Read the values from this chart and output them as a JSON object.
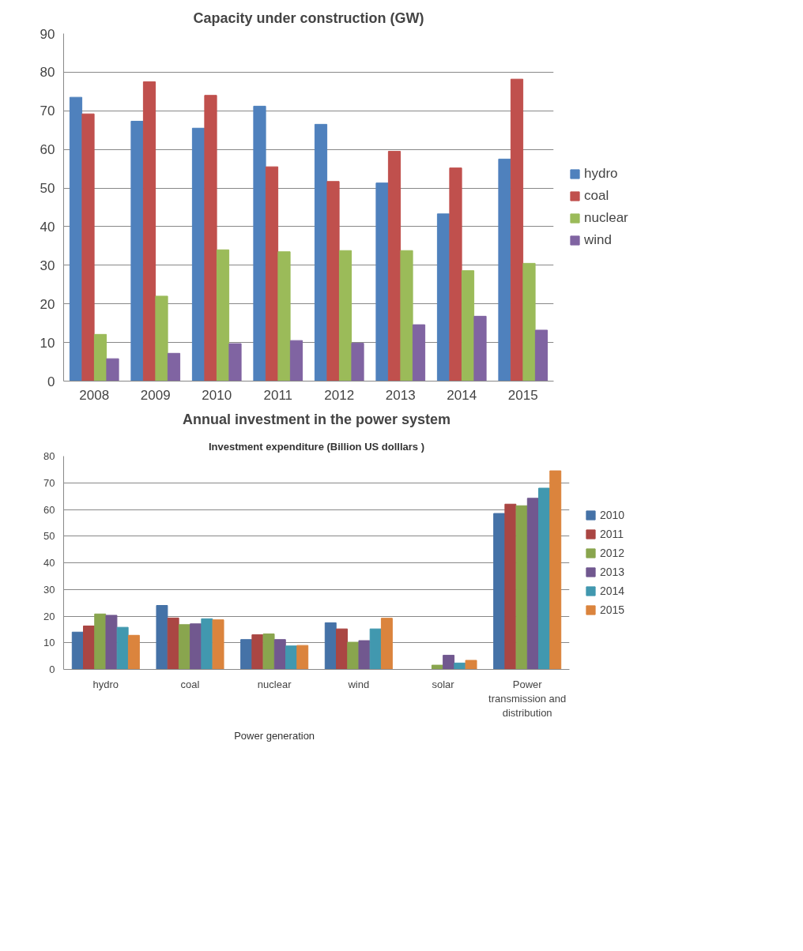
{
  "chart_data": [
    {
      "type": "bar",
      "title": "Capacity under construction (GW)",
      "categories": [
        "2008",
        "2009",
        "2010",
        "2011",
        "2012",
        "2013",
        "2014",
        "2015"
      ],
      "ylim": [
        0,
        90
      ],
      "yticks": [
        0,
        10,
        20,
        30,
        40,
        50,
        60,
        70,
        80,
        90
      ],
      "grid": "y",
      "legend": "right",
      "series": [
        {
          "name": "hydro",
          "color": "#4f81bd",
          "values": [
            73.5,
            67.3,
            65.5,
            71.2,
            66.5,
            51.3,
            43.3,
            57.5
          ]
        },
        {
          "name": "coal",
          "color": "#c0504d",
          "values": [
            69.2,
            77.5,
            74.0,
            55.5,
            51.7,
            59.5,
            55.2,
            78.2
          ]
        },
        {
          "name": "nuclear",
          "color": "#9bbb59",
          "values": [
            12.1,
            22.0,
            34.0,
            33.5,
            33.8,
            33.8,
            28.6,
            30.5
          ]
        },
        {
          "name": "wind",
          "color": "#8064a2",
          "values": [
            5.8,
            7.2,
            9.7,
            10.5,
            9.8,
            14.6,
            16.8,
            13.2
          ]
        }
      ]
    },
    {
      "type": "bar",
      "title": "Annual investment in the power system",
      "subtitle": "Investment expenditure (Billion US dolllars )",
      "categories": [
        "hydro",
        "coal",
        "nuclear",
        "wind",
        "solar",
        "Power transmission and distribution"
      ],
      "annotations": [
        "Power generation"
      ],
      "ylim": [
        0,
        80
      ],
      "yticks": [
        0,
        10,
        20,
        30,
        40,
        50,
        60,
        70,
        80
      ],
      "grid": "y",
      "legend": "right",
      "series": [
        {
          "name": "2010",
          "color": "#4572a7",
          "values": [
            14.0,
            24.0,
            11.2,
            17.5,
            null,
            58.5
          ]
        },
        {
          "name": "2011",
          "color": "#aa4643",
          "values": [
            16.3,
            19.3,
            13.0,
            15.2,
            null,
            62.0
          ]
        },
        {
          "name": "2012",
          "color": "#89a54e",
          "values": [
            20.8,
            16.8,
            13.3,
            10.2,
            1.6,
            61.4
          ]
        },
        {
          "name": "2013",
          "color": "#71588f",
          "values": [
            20.3,
            17.1,
            11.2,
            10.8,
            5.3,
            64.2
          ]
        },
        {
          "name": "2014",
          "color": "#4198af",
          "values": [
            15.8,
            19.0,
            8.8,
            15.2,
            2.4,
            68.0
          ]
        },
        {
          "name": "2015",
          "color": "#db843d",
          "values": [
            12.8,
            18.6,
            9.0,
            19.2,
            3.4,
            74.5
          ]
        }
      ]
    }
  ]
}
